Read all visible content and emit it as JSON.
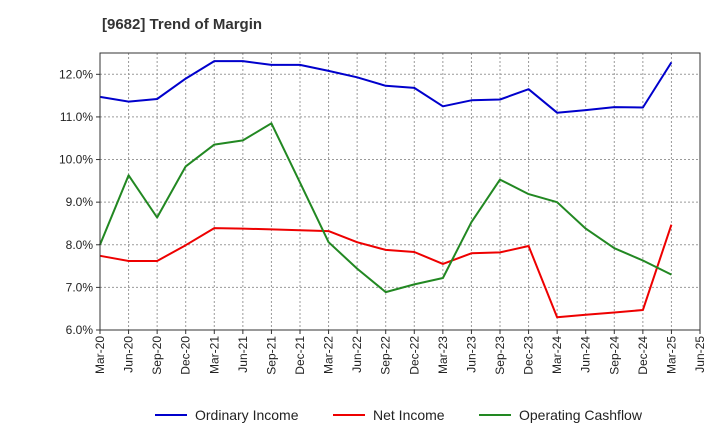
{
  "chart_data": {
    "type": "line",
    "title": "[9682]  Trend of Margin",
    "xlabel": "",
    "ylabel": "",
    "ylim": [
      6.0,
      12.5
    ],
    "yticks": [
      6.0,
      7.0,
      8.0,
      9.0,
      10.0,
      11.0,
      12.0
    ],
    "ytick_labels": [
      "6.0%",
      "7.0%",
      "8.0%",
      "9.0%",
      "10.0%",
      "11.0%",
      "12.0%"
    ],
    "grid": true,
    "legend_position": "bottom",
    "categories": [
      "Mar-20",
      "Jun-20",
      "Sep-20",
      "Dec-20",
      "Mar-21",
      "Jun-21",
      "Sep-21",
      "Dec-21",
      "Mar-22",
      "Jun-22",
      "Sep-22",
      "Dec-22",
      "Mar-23",
      "Jun-23",
      "Sep-23",
      "Dec-23",
      "Mar-24",
      "Jun-24",
      "Sep-24",
      "Dec-24",
      "Mar-25",
      "Jun-25"
    ],
    "series": [
      {
        "name": "Ordinary Income",
        "color": "#0000cc",
        "values": [
          11.47,
          11.36,
          11.42,
          11.9,
          12.31,
          12.31,
          12.22,
          12.22,
          12.08,
          11.93,
          11.73,
          11.68,
          11.25,
          11.39,
          11.41,
          11.65,
          11.1,
          11.16,
          11.23,
          11.22,
          12.28,
          null
        ]
      },
      {
        "name": "Net Income",
        "color": "#ee0000",
        "values": [
          7.74,
          7.62,
          7.62,
          7.99,
          8.39,
          8.38,
          8.36,
          8.34,
          8.32,
          8.06,
          7.88,
          7.83,
          7.55,
          7.8,
          7.82,
          7.97,
          6.3,
          6.36,
          6.41,
          6.47,
          8.47,
          null
        ]
      },
      {
        "name": "Operating Cashflow",
        "color": "#228822",
        "values": [
          8.0,
          9.63,
          8.64,
          9.84,
          10.35,
          10.45,
          10.85,
          9.46,
          8.06,
          7.44,
          6.89,
          7.07,
          7.22,
          8.53,
          9.53,
          9.19,
          9.0,
          8.38,
          7.92,
          7.63,
          7.3,
          null
        ]
      }
    ]
  }
}
